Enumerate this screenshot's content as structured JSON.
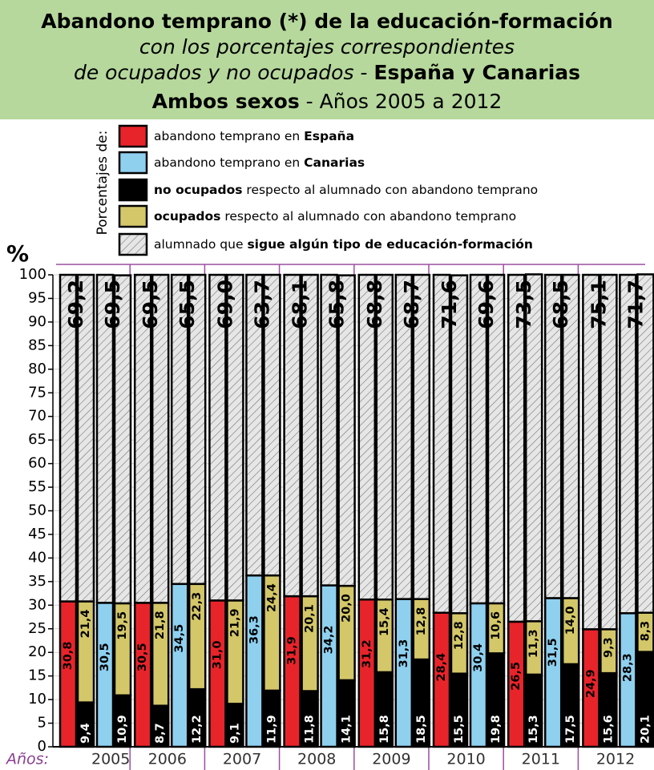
{
  "chart_data": {
    "type": "stacked_bar",
    "title": [
      [
        {
          "text": "Abandono temprano (*) de la educación-formación",
          "style": "bold"
        }
      ],
      [
        {
          "text": "con los porcentajes correspondientes",
          "style": "italic"
        }
      ],
      [
        {
          "text": "de ocupados y no ocupados - ",
          "style": "italic"
        },
        {
          "text": "España y Canarias",
          "style": "bold"
        }
      ],
      [
        {
          "text": "Ambos sexos",
          "style": "bold"
        },
        {
          "text": " - Años 2005 a 2012",
          "style": "normal"
        }
      ]
    ],
    "legend": {
      "title": "Porcentajes de:",
      "items": [
        {
          "color": "#e8242b",
          "parts": [
            {
              "text": "abandono temprano en ",
              "style": "normal"
            },
            {
              "text": "España",
              "style": "bold"
            }
          ]
        },
        {
          "color": "#8fd0ef",
          "parts": [
            {
              "text": "abandono temprano en ",
              "style": "normal"
            },
            {
              "text": "Canarias",
              "style": "bold"
            }
          ]
        },
        {
          "color": "#000000",
          "parts": [
            {
              "text": "no ocupados",
              "style": "bold"
            },
            {
              "text": " respecto al alumnado con abandono temprano",
              "style": "normal"
            }
          ]
        },
        {
          "color": "#d4c76a",
          "parts": [
            {
              "text": "ocupados",
              "style": "bold"
            },
            {
              "text": " respecto al alumnado con abandono temprano",
              "style": "normal"
            }
          ]
        },
        {
          "color": "hatch",
          "parts": [
            {
              "text": "alumnado que ",
              "style": "normal"
            },
            {
              "text": "sigue algún tipo de educación-formación",
              "style": "bold"
            }
          ]
        }
      ]
    },
    "y_label": "%",
    "x_label": "Años:",
    "categories": [
      "2005",
      "2006",
      "2007",
      "2008",
      "2009",
      "2010",
      "2011",
      "2012"
    ],
    "ylim": [
      0,
      100
    ],
    "yticks": [
      0,
      5,
      10,
      15,
      20,
      25,
      30,
      35,
      40,
      45,
      50,
      55,
      60,
      65,
      70,
      75,
      80,
      85,
      90,
      95,
      100
    ],
    "grid": true,
    "groups": [
      {
        "abandono": {
          "values": [
            30.8,
            30.5,
            31.0,
            31.9,
            31.2,
            28.4,
            26.5,
            24.9
          ],
          "value_labels": [
            "30,8",
            "30,5",
            "31,0",
            "31,9",
            "31,2",
            "28,4",
            "26,5",
            "24,9"
          ]
        },
        "no_ocupados": {
          "values": [
            9.4,
            8.7,
            9.1,
            11.8,
            15.8,
            15.5,
            15.3,
            15.6
          ],
          "value_labels": [
            "9,4",
            "8,7",
            "9,1",
            "11,8",
            "15,8",
            "15,5",
            "15,3",
            "15,6"
          ]
        },
        "ocupados": {
          "values": [
            21.4,
            21.8,
            21.9,
            20.1,
            15.4,
            12.8,
            11.3,
            9.3
          ],
          "value_labels": [
            "21,4",
            "21,8",
            "21,9",
            "20,1",
            "15,4",
            "12,8",
            "11,3",
            "9,3"
          ]
        },
        "sigue": {
          "values": [
            69.2,
            69.5,
            69.0,
            68.1,
            68.8,
            71.6,
            73.5,
            75.1
          ],
          "value_labels": [
            "69,2",
            "69,5",
            "69,0",
            "68,1",
            "68,8",
            "71,6",
            "73,5",
            "75,1"
          ]
        }
      },
      {
        "abandono": {
          "values": [
            30.5,
            34.5,
            36.3,
            34.2,
            31.3,
            30.4,
            31.5,
            28.3
          ],
          "value_labels": [
            "30,5",
            "34,5",
            "36,3",
            "34,2",
            "31,3",
            "30,4",
            "31,5",
            "28,3"
          ]
        },
        "no_ocupados": {
          "values": [
            10.9,
            12.2,
            11.9,
            14.1,
            18.5,
            19.8,
            17.5,
            20.1
          ],
          "value_labels": [
            "10,9",
            "12,2",
            "11,9",
            "14,1",
            "18,5",
            "19,8",
            "17,5",
            "20,1"
          ]
        },
        "ocupados": {
          "values": [
            19.5,
            22.3,
            24.4,
            20.0,
            12.8,
            10.6,
            14.0,
            8.3
          ],
          "value_labels": [
            "19,5",
            "22,3",
            "24,4",
            "20,0",
            "12,8",
            "10,6",
            "14,0",
            "8,3"
          ]
        },
        "sigue": {
          "values": [
            69.5,
            65.5,
            63.7,
            65.8,
            68.7,
            69.6,
            68.5,
            71.7
          ],
          "value_labels": [
            "69,5",
            "65,5",
            "63,7",
            "65,8",
            "68,7",
            "69,6",
            "68,5",
            "71,7"
          ]
        }
      }
    ]
  }
}
